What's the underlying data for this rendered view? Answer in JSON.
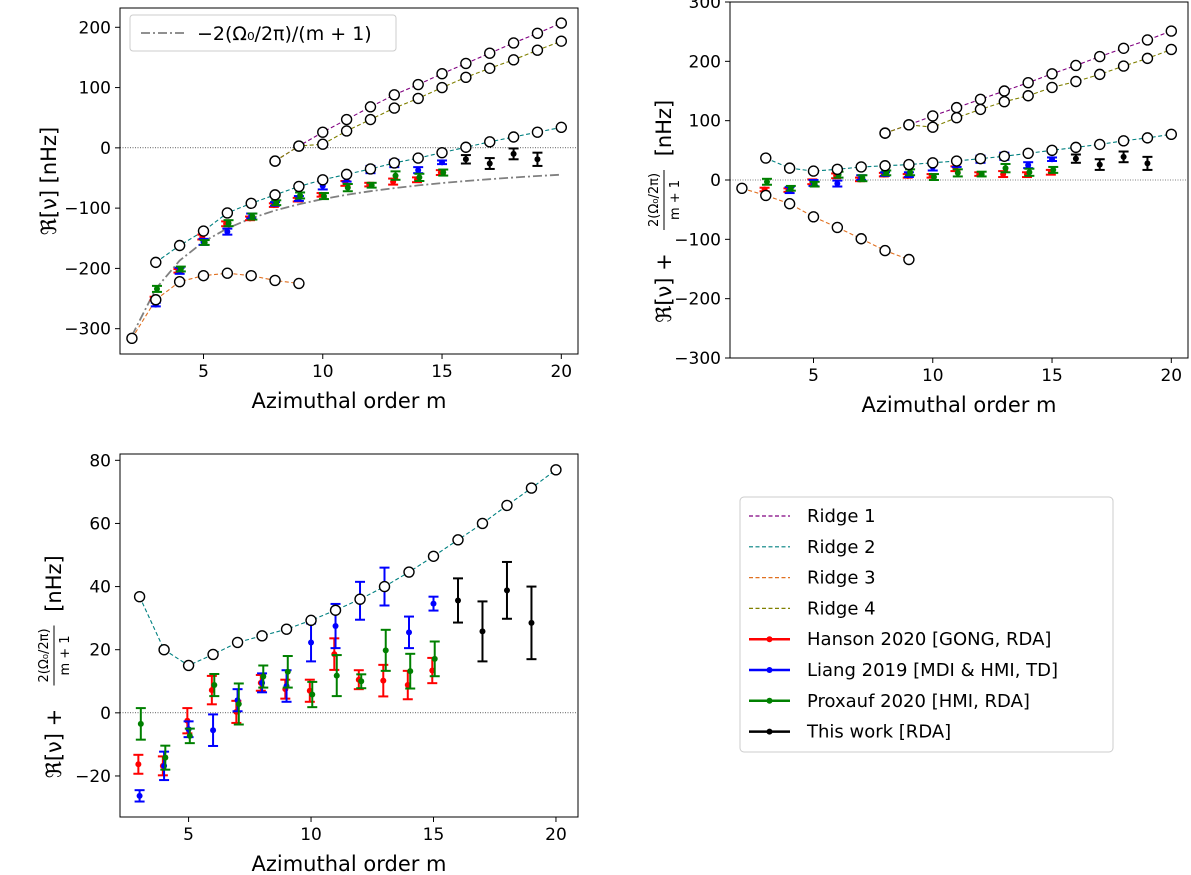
{
  "chart_data": [
    {
      "id": "top-left",
      "type": "scatter",
      "xlabel": "Azimuthal order m",
      "ylabel": "ℜ[ν] [nHz]",
      "xlim": [
        1.5,
        20.7
      ],
      "ylim": [
        -342,
        232
      ],
      "xticks": [
        5,
        10,
        15,
        20
      ],
      "yticks": [
        -300,
        -200,
        -100,
        0,
        100,
        200
      ],
      "zero_line": true,
      "legend": {
        "placement": "top-left",
        "entries": [
          {
            "label": "−2(Ω₀/2π)/(m + 1)",
            "series": "rossby"
          }
        ]
      },
      "reference_curve": {
        "name": "−2(Ω₀/2π)/(m + 1)",
        "x": [
          2,
          3,
          4,
          5,
          6,
          7,
          8,
          9,
          10,
          11,
          12,
          13,
          14,
          15,
          16,
          17,
          18,
          19,
          20
        ],
        "y": [
          -311.7,
          -233.8,
          -187,
          -155.8,
          -133.6,
          -116.9,
          -103.9,
          -93.5,
          -85,
          -77.9,
          -71.9,
          -66.8,
          -62.3,
          -58.4,
          -55,
          -52,
          -49.2,
          -46.7,
          -44.5
        ]
      },
      "ridges": [
        {
          "name": "Ridge 1",
          "x": [
            8,
            9,
            10,
            11,
            12,
            13,
            14,
            15,
            16,
            17,
            18,
            19,
            20
          ],
          "y": [
            -22,
            3,
            26,
            47,
            68,
            88,
            105,
            123,
            140,
            157,
            174,
            190,
            207
          ]
        },
        {
          "name": "Ridge 2",
          "x": [
            3,
            4,
            5,
            6,
            7,
            8,
            9,
            10,
            11,
            12,
            13,
            14,
            15,
            16,
            17,
            18,
            19,
            20
          ],
          "y": [
            -190,
            -162,
            -138,
            -108,
            -92,
            -78,
            -64,
            -53,
            -44,
            -35,
            -25,
            -17,
            -8,
            1,
            10,
            18,
            26,
            34
          ]
        },
        {
          "name": "Ridge 3",
          "x": [
            2,
            3,
            4,
            5,
            6,
            7,
            8,
            9
          ],
          "y": [
            -316,
            -252,
            -222,
            -212,
            -208,
            -212,
            -220,
            -225
          ]
        },
        {
          "name": "Ridge 4",
          "x": [
            8,
            9,
            10,
            11,
            12,
            13,
            14,
            15,
            16,
            17,
            18,
            19,
            20
          ],
          "y": [
            -22,
            3,
            6,
            28,
            47,
            66,
            82,
            100,
            117,
            132,
            146,
            162,
            177
          ]
        }
      ],
      "datasets": [
        {
          "name": "Hanson 2020 [GONG, RDA]",
          "x": [
            3,
            4,
            5,
            6,
            7,
            8,
            9,
            10,
            11,
            12,
            13,
            14,
            15
          ],
          "y": [
            -250,
            -204,
            -148,
            -126,
            -117,
            -95,
            -86,
            -78,
            -59,
            -61,
            -56,
            -53,
            -41
          ],
          "err": [
            3,
            3,
            4,
            4,
            3,
            3,
            3,
            3,
            4,
            3,
            5,
            4,
            4
          ]
        },
        {
          "name": "Liang 2019 [MDI & HMI, TD]",
          "x": [
            3,
            4,
            5,
            6,
            7,
            8,
            9,
            10,
            11,
            12,
            13,
            14,
            15
          ],
          "y": [
            -260,
            -204,
            -156,
            -139,
            -113,
            -93,
            -84,
            -63,
            -51,
            -36,
            -26,
            -37,
            -24
          ],
          "err": [
            3,
            5,
            5,
            5,
            4,
            3,
            4,
            6,
            5,
            6,
            6,
            5,
            3
          ]
        },
        {
          "name": "Proxauf 2020 [HMI, RDA]",
          "x": [
            3,
            4,
            5,
            6,
            7,
            8,
            9,
            10,
            11,
            12,
            13,
            14,
            15
          ],
          "y": [
            -234,
            -201,
            -157,
            -125,
            -114,
            -91,
            -79,
            -80,
            -66,
            -62,
            -46,
            -49,
            -41
          ],
          "err": [
            5,
            4,
            4,
            5,
            5,
            4,
            5,
            5,
            6,
            4,
            7,
            6,
            5
          ]
        },
        {
          "name": "This work [RDA]",
          "x": [
            16,
            17,
            18,
            19
          ],
          "y": [
            -19,
            -26,
            -10,
            -19
          ],
          "err": [
            7,
            9,
            9,
            11
          ]
        }
      ]
    },
    {
      "id": "top-right",
      "type": "scatter",
      "xlabel": "Azimuthal order m",
      "ylabel_main": "ℜ[ν] +",
      "ylabel_frac_num": "2(Ω₀/2π)",
      "ylabel_frac_den": "m + 1",
      "ylabel_unit": "[nHz]",
      "xlim": [
        1.5,
        20.7
      ],
      "ylim": [
        -300,
        300
      ],
      "xticks": [
        5,
        10,
        15,
        20
      ],
      "yticks": [
        -300,
        -200,
        -100,
        0,
        100,
        200,
        300
      ],
      "zero_line": true,
      "ridges": [
        {
          "name": "Ridge 1",
          "x": [
            8,
            9,
            10,
            11,
            12,
            13,
            14,
            15,
            16,
            17,
            18,
            19,
            20
          ],
          "y": [
            79,
            93,
            108,
            122,
            136,
            150,
            164,
            179,
            193,
            208,
            222,
            236,
            251
          ]
        },
        {
          "name": "Ridge 2",
          "x": [
            3,
            4,
            5,
            6,
            7,
            8,
            9,
            10,
            11,
            12,
            13,
            14,
            15,
            16,
            17,
            18,
            19,
            20
          ],
          "y": [
            37,
            20,
            15,
            18,
            22,
            24,
            26,
            29,
            32,
            36,
            40,
            45,
            50,
            55,
            60,
            66,
            71,
            77
          ]
        },
        {
          "name": "Ridge 3",
          "x": [
            2,
            3,
            4,
            5,
            6,
            7,
            8,
            9
          ],
          "y": [
            -14,
            -26,
            -40,
            -62,
            -80,
            -99,
            -119,
            -134
          ]
        },
        {
          "name": "Ridge 4",
          "x": [
            8,
            9,
            10,
            11,
            12,
            13,
            14,
            15,
            16,
            17,
            18,
            19,
            20
          ],
          "y": [
            79,
            93,
            89,
            105,
            119,
            132,
            142,
            156,
            166,
            178,
            192,
            205,
            220
          ]
        }
      ],
      "datasets": [
        {
          "name": "Hanson 2020 [GONG, RDA]",
          "x": [
            3,
            4,
            5,
            6,
            7,
            8,
            9,
            10,
            11,
            12,
            13,
            14,
            15
          ],
          "y": [
            -16,
            -17,
            -3,
            7,
            1,
            9,
            7,
            7,
            19,
            10,
            10,
            9,
            13
          ],
          "err": [
            3,
            3,
            4,
            4,
            3,
            3,
            3,
            3,
            4,
            3,
            5,
            4,
            4
          ]
        },
        {
          "name": "Liang 2019 [MDI & HMI, TD]",
          "x": [
            3,
            4,
            5,
            6,
            7,
            8,
            9,
            10,
            11,
            12,
            13,
            14,
            15
          ],
          "y": [
            -26,
            -17,
            -5,
            -6,
            4,
            10,
            9,
            22,
            27,
            35,
            40,
            25,
            35
          ],
          "err": [
            3,
            5,
            5,
            5,
            4,
            3,
            4,
            6,
            5,
            6,
            6,
            5,
            3
          ]
        },
        {
          "name": "Proxauf 2020 [HMI, RDA]",
          "x": [
            3,
            4,
            5,
            6,
            7,
            8,
            9,
            10,
            11,
            12,
            13,
            14,
            15
          ],
          "y": [
            -3,
            -14,
            -7,
            9,
            3,
            12,
            13,
            5,
            12,
            10,
            20,
            13,
            17
          ],
          "err": [
            5,
            4,
            4,
            5,
            5,
            4,
            5,
            5,
            6,
            4,
            7,
            6,
            5
          ]
        },
        {
          "name": "This work [RDA]",
          "x": [
            16,
            17,
            18,
            19
          ],
          "y": [
            36,
            26,
            39,
            28
          ],
          "err": [
            7,
            9,
            9,
            11
          ]
        }
      ]
    },
    {
      "id": "bottom-left",
      "type": "scatter",
      "xlabel": "Azimuthal order m",
      "ylabel_main": "ℜ[ν] +",
      "ylabel_frac_num": "2(Ω₀/2π)",
      "ylabel_frac_den": "m + 1",
      "ylabel_unit": "[nHz]",
      "xlim": [
        2.2,
        20.9
      ],
      "ylim": [
        -33,
        82
      ],
      "xticks": [
        5,
        10,
        15,
        20
      ],
      "yticks": [
        -20,
        0,
        20,
        40,
        60,
        80
      ],
      "zero_line": true,
      "ridges": [
        {
          "name": "Ridge 2",
          "x": [
            3,
            4,
            5,
            6,
            7,
            8,
            9,
            10,
            11,
            12,
            13,
            14,
            15,
            16,
            17,
            18,
            19,
            20
          ],
          "y": [
            36.8,
            20,
            15,
            18.5,
            22.3,
            24.4,
            26.5,
            29.3,
            32.5,
            36,
            40,
            44.6,
            49.6,
            54.8,
            60,
            65.7,
            71.2,
            77
          ]
        }
      ],
      "datasets": [
        {
          "name": "Hanson 2020 [GONG, RDA]",
          "x": [
            3,
            4,
            5,
            6,
            7,
            8,
            9,
            10,
            11,
            12,
            13,
            14,
            15
          ],
          "y": [
            -16.3,
            -16.8,
            -2.5,
            7.2,
            0.3,
            9.5,
            7.5,
            7,
            18.6,
            10.5,
            10.2,
            8.8,
            13.4
          ],
          "err": [
            3,
            3,
            4,
            4.5,
            3.5,
            2.5,
            3,
            3.5,
            5,
            3,
            5,
            4.5,
            4
          ]
        },
        {
          "name": "Liang 2019 [MDI & HMI, TD]",
          "x": [
            3,
            4,
            5,
            6,
            7,
            8,
            9,
            10,
            11,
            12,
            13,
            14,
            15
          ],
          "y": [
            -26.3,
            -16.8,
            -5.2,
            -5.5,
            4,
            9.5,
            8.5,
            22.3,
            27.5,
            35.5,
            40,
            25.5,
            34.6
          ],
          "err": [
            1.8,
            4.5,
            2.5,
            5,
            3.5,
            3,
            5,
            6,
            7,
            6,
            6,
            5,
            2.2
          ]
        },
        {
          "name": "Proxauf 2020 [HMI, RDA]",
          "x": [
            3,
            4,
            5,
            6,
            7,
            8,
            9,
            10,
            11,
            12,
            13,
            14,
            15
          ],
          "y": [
            -3.5,
            -14.2,
            -7.3,
            8.8,
            2.8,
            11.5,
            13,
            5.8,
            11.8,
            10,
            19.8,
            13.2,
            17.1
          ],
          "err": [
            5,
            3.8,
            2.3,
            3.5,
            6.5,
            3.5,
            5,
            4,
            6.5,
            2.2,
            6.5,
            5.5,
            5.5
          ]
        },
        {
          "name": "This work [RDA]",
          "x": [
            16,
            17,
            18,
            19
          ],
          "y": [
            35.6,
            25.8,
            38.8,
            28.5
          ],
          "err": [
            7,
            9.5,
            9,
            11.5
          ]
        }
      ]
    }
  ],
  "legend": {
    "placement": "lower-right",
    "entries": [
      {
        "label": "Ridge 1",
        "kind": "dashed",
        "color": "#800080"
      },
      {
        "label": "Ridge 2",
        "kind": "dashed",
        "color": "#008080"
      },
      {
        "label": "Ridge 3",
        "kind": "dashed",
        "color": "#e07020"
      },
      {
        "label": "Ridge 4",
        "kind": "dashed",
        "color": "#808000"
      },
      {
        "label": "Hanson 2020 [GONG, RDA]",
        "kind": "solid-marker",
        "color": "#ff0000"
      },
      {
        "label": "Liang 2019 [MDI & HMI, TD]",
        "kind": "solid-marker",
        "color": "#0000ff"
      },
      {
        "label": "Proxauf 2020 [HMI, RDA]",
        "kind": "solid-marker",
        "color": "#008000"
      },
      {
        "label": "This work [RDA]",
        "kind": "solid-marker",
        "color": "#000000"
      }
    ]
  },
  "colors": {
    "Ridge 1": "#800080",
    "Ridge 2": "#008080",
    "Ridge 3": "#e07020",
    "Ridge 4": "#808000",
    "Hanson 2020 [GONG, RDA]": "#ff0000",
    "Liang 2019 [MDI & HMI, TD]": "#0000ff",
    "Proxauf 2020 [HMI, RDA]": "#008000",
    "This work [RDA]": "#000000",
    "reference": "#808080"
  }
}
